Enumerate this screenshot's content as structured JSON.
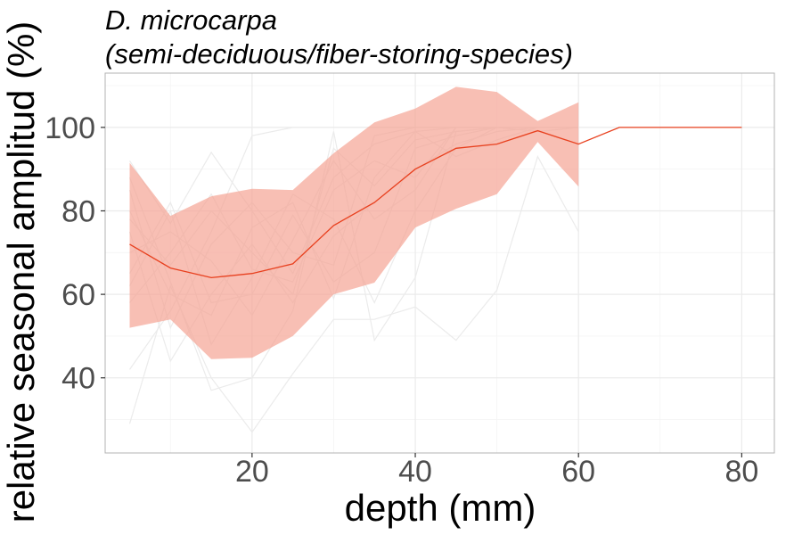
{
  "chart_data": {
    "type": "line",
    "title_lines": [
      "D. microcarpa",
      "(semi-deciduous/fiber-storing-species)"
    ],
    "xlabel": "depth (mm)",
    "ylabel": "relative seasonal amplitud (%)",
    "xlim": [
      2,
      84
    ],
    "ylim": [
      22,
      113
    ],
    "x_ticks": [
      20,
      40,
      60,
      80
    ],
    "y_ticks": [
      40,
      60,
      80,
      100
    ],
    "grid": true,
    "legend": "none",
    "colors": {
      "mean_line": "#e8401e",
      "band_fill": "#f4a090",
      "individual_lines": "#ebebeb",
      "grid_major": "#ebebeb",
      "grid_minor": "#f4f4f4",
      "panel_border": "#b3b3b3"
    },
    "series": [
      {
        "role": "mean",
        "x": [
          5,
          10,
          15,
          20,
          25,
          30,
          35,
          40,
          45,
          50,
          55,
          60,
          65,
          70,
          75,
          80
        ],
        "y": [
          72,
          66.3,
          64,
          65,
          67.3,
          76.5,
          82,
          90,
          95,
          96,
          99.2,
          96,
          100,
          100,
          100,
          100
        ]
      },
      {
        "role": "band",
        "x": [
          5,
          10,
          15,
          20,
          25,
          30,
          35,
          40,
          45,
          50,
          55,
          60
        ],
        "lower": [
          52,
          54,
          44.5,
          44.8,
          50,
          60,
          62.8,
          76,
          80.5,
          84,
          96.5,
          85.8
        ],
        "upper": [
          91.5,
          78.8,
          83.5,
          85.3,
          85,
          93.8,
          101.2,
          104.5,
          109.7,
          108.5,
          101.5,
          106
        ]
      },
      {
        "role": "individual",
        "lines": [
          {
            "x": [
              5,
              10,
              15,
              20,
              25,
              30,
              35,
              40,
              45,
              50,
              55,
              60
            ],
            "y": [
              42,
              56,
              75,
              98,
              100,
              100,
              100,
              100,
              100,
              100,
              100,
              100
            ]
          },
          {
            "x": [
              5,
              10,
              15,
              20,
              25,
              30,
              35,
              40,
              45,
              50,
              55,
              60
            ],
            "y": [
              92,
              77,
              94,
              80,
              65,
              88,
              96,
              99,
              100,
              100,
              100,
              100
            ]
          },
          {
            "x": [
              5,
              10,
              15,
              20,
              25,
              30,
              35,
              40,
              45,
              50,
              55,
              60
            ],
            "y": [
              29,
              62,
              40,
              27,
              41,
              54,
              54,
              57,
              49,
              61,
              93,
              75
            ]
          },
          {
            "x": [
              5,
              10,
              15,
              20,
              25,
              30,
              35,
              40,
              45,
              50,
              55,
              60
            ],
            "y": [
              88,
              63,
              37,
              40,
              56,
              99,
              49,
              64,
              99,
              100,
              99,
              100
            ]
          },
          {
            "x": [
              5,
              10,
              15,
              20,
              25,
              30,
              35,
              40,
              45,
              50,
              55,
              60
            ],
            "y": [
              75,
              44,
              60,
              72,
              58,
              74,
              82,
              90,
              96,
              99,
              100,
              100
            ]
          },
          {
            "x": [
              5,
              10,
              15,
              20,
              25,
              30,
              35,
              40,
              45,
              50,
              55,
              60
            ],
            "y": [
              65,
              82,
              58,
              60,
              79,
              63,
              70,
              95,
              98,
              100,
              100,
              100
            ]
          },
          {
            "x": [
              5,
              10,
              15,
              20,
              25,
              30,
              35,
              40,
              45,
              50,
              55,
              60
            ],
            "y": [
              58,
              70,
              84,
              66,
              63,
              85,
              92,
              88,
              100,
              100,
              100,
              100
            ]
          },
          {
            "x": [
              5,
              10,
              15,
              20,
              25,
              30,
              35,
              40,
              45,
              50,
              55,
              60
            ],
            "y": [
              80,
              60,
              55,
              76,
              82,
              59,
              88,
              99,
              93,
              97,
              100,
              100
            ]
          },
          {
            "x": [
              5,
              10,
              15,
              20,
              25,
              30,
              35,
              40,
              45,
              50,
              55,
              60
            ],
            "y": [
              70,
              75,
              68,
              55,
              73,
              92,
              78,
              85,
              100,
              100,
              100,
              100
            ]
          },
          {
            "x": [
              5,
              10,
              15,
              20,
              25,
              30,
              35,
              40,
              45,
              50,
              55,
              60
            ],
            "y": [
              85,
              52,
              72,
              82,
              70,
              67,
              98,
              100,
              100,
              100,
              100,
              100
            ]
          },
          {
            "x": [
              5,
              10,
              15,
              20,
              25,
              30,
              35,
              40,
              45,
              50,
              55,
              60
            ],
            "y": [
              62,
              80,
              48,
              64,
              84,
              78,
              58,
              80,
              95,
              100,
              100,
              100
            ]
          },
          {
            "x": [
              5,
              10,
              15,
              20,
              25,
              30,
              35,
              40,
              45,
              50,
              55,
              60
            ],
            "y": [
              78,
              67,
              80,
              70,
              60,
              95,
              86,
              97,
              99,
              100,
              100,
              100
            ]
          }
        ]
      }
    ]
  }
}
